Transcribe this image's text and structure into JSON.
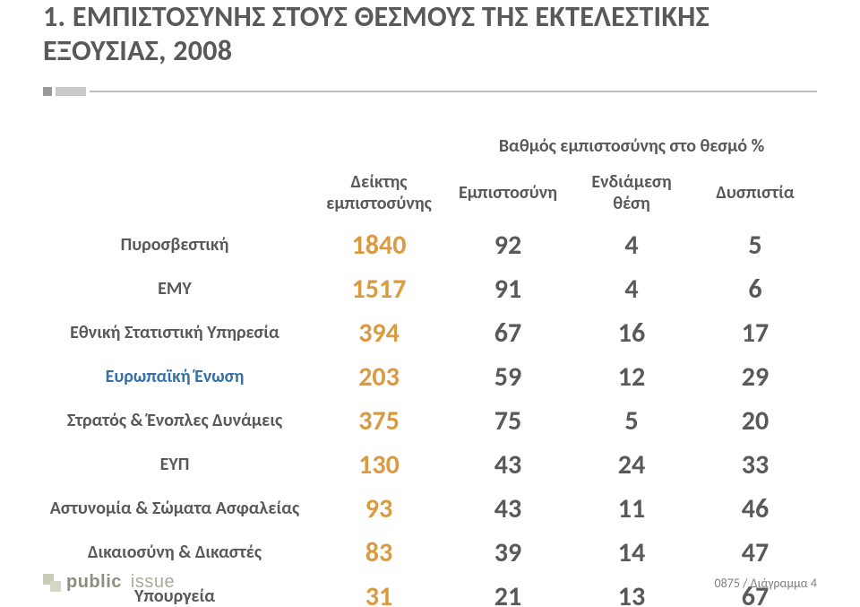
{
  "title_line1": "1. ΕΜΠΙΣΤΟΣΥΝΗΣ ΣΤΟΥΣ ΘΕΣΜΟΥΣ ΤΗΣ ΕΚΤΕΛΕΣΤΙΚΗΣ",
  "title_line2": "ΕΞΟΥΣΙΑΣ, 2008",
  "table": {
    "superhead": "Βαθμός εμπιστοσύνης στο θεσμό %",
    "headers": {
      "index": "Δείκτης\nεμπιστοσύνης",
      "trust": "Εμπιστοσύνη",
      "middle": "Ενδιάμεση θέση",
      "distrust": "Δυσπιστία"
    },
    "rows": [
      {
        "label": "Πυροσβεστική",
        "accent": false,
        "index": "1840",
        "v1": "92",
        "v2": "4",
        "v3": "5"
      },
      {
        "label": "ΕΜΥ",
        "accent": false,
        "index": "1517",
        "v1": "91",
        "v2": "4",
        "v3": "6"
      },
      {
        "label": "Εθνική Στατιστική Υπηρεσία",
        "accent": false,
        "index": "394",
        "v1": "67",
        "v2": "16",
        "v3": "17"
      },
      {
        "label": "Ευρωπαϊκή Ένωση",
        "accent": true,
        "index": "203",
        "v1": "59",
        "v2": "12",
        "v3": "29"
      },
      {
        "label": "Στρατός & Ένοπλες Δυνάμεις",
        "accent": false,
        "index": "375",
        "v1": "75",
        "v2": "5",
        "v3": "20"
      },
      {
        "label": "ΕΥΠ",
        "accent": false,
        "index": "130",
        "v1": "43",
        "v2": "24",
        "v3": "33"
      },
      {
        "label": "Αστυνομία & Σώματα Ασφαλείας",
        "accent": false,
        "index": "93",
        "v1": "43",
        "v2": "11",
        "v3": "46"
      },
      {
        "label": "Δικαιοσύνη & Δικαστές",
        "accent": false,
        "index": "83",
        "v1": "39",
        "v2": "14",
        "v3": "47"
      },
      {
        "label": "Υπουργεία",
        "accent": false,
        "index": "31",
        "v1": "21",
        "v2": "13",
        "v3": "67"
      }
    ],
    "style": {
      "index_color": "#d99a41",
      "value_color": "#595959",
      "text_color": "#595959",
      "accent_color": "#3571a8",
      "index_fontsize": 30,
      "value_fontsize": 30,
      "label_fontsize": 20,
      "header_fontsize": 20,
      "superhead_fontsize": 22,
      "title_fontsize": 32
    }
  },
  "footer": {
    "brand1": "public",
    "brand2": "issue",
    "id_text": "0875 / Διάγραμμα 4"
  }
}
